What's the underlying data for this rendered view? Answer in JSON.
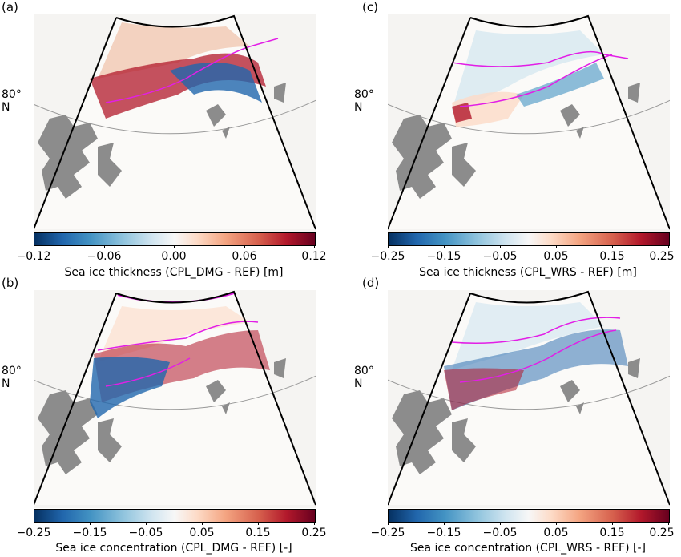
{
  "figure": {
    "latitude_label": "80° N",
    "panels": [
      {
        "label": "(a)",
        "colorbar_title": "Sea ice thickness (CPL_DMG - REF) [m]",
        "ticks": [
          "−0.12",
          "−0.06",
          "0.00",
          "0.06",
          "0.12"
        ],
        "range": [
          -0.12,
          0.12
        ]
      },
      {
        "label": "(c)",
        "colorbar_title": "Sea ice thickness (CPL_WRS - REF) [m]",
        "ticks": [
          "−0.25",
          "−0.15",
          "−0.05",
          "0.05",
          "0.15",
          "0.25"
        ],
        "range": [
          -0.25,
          0.25
        ]
      },
      {
        "label": "(b)",
        "colorbar_title": "Sea ice concentration (CPL_DMG - REF) [-]",
        "ticks": [
          "−0.25",
          "−0.15",
          "−0.05",
          "0.05",
          "0.15",
          "0.25"
        ],
        "range": [
          -0.25,
          0.25
        ]
      },
      {
        "label": "(d)",
        "colorbar_title": "Sea ice concentration (CPL_WRS - REF) [-]",
        "ticks": [
          "−0.25",
          "−0.15",
          "−0.05",
          "0.05",
          "0.15",
          "0.25"
        ],
        "range": [
          -0.25,
          0.25
        ]
      }
    ],
    "colors": {
      "land": "#8c8c8c",
      "ocean": "#f5f4f2",
      "ice_edge_contour": "#e21ee6",
      "colormap": "RdBu_r"
    }
  }
}
